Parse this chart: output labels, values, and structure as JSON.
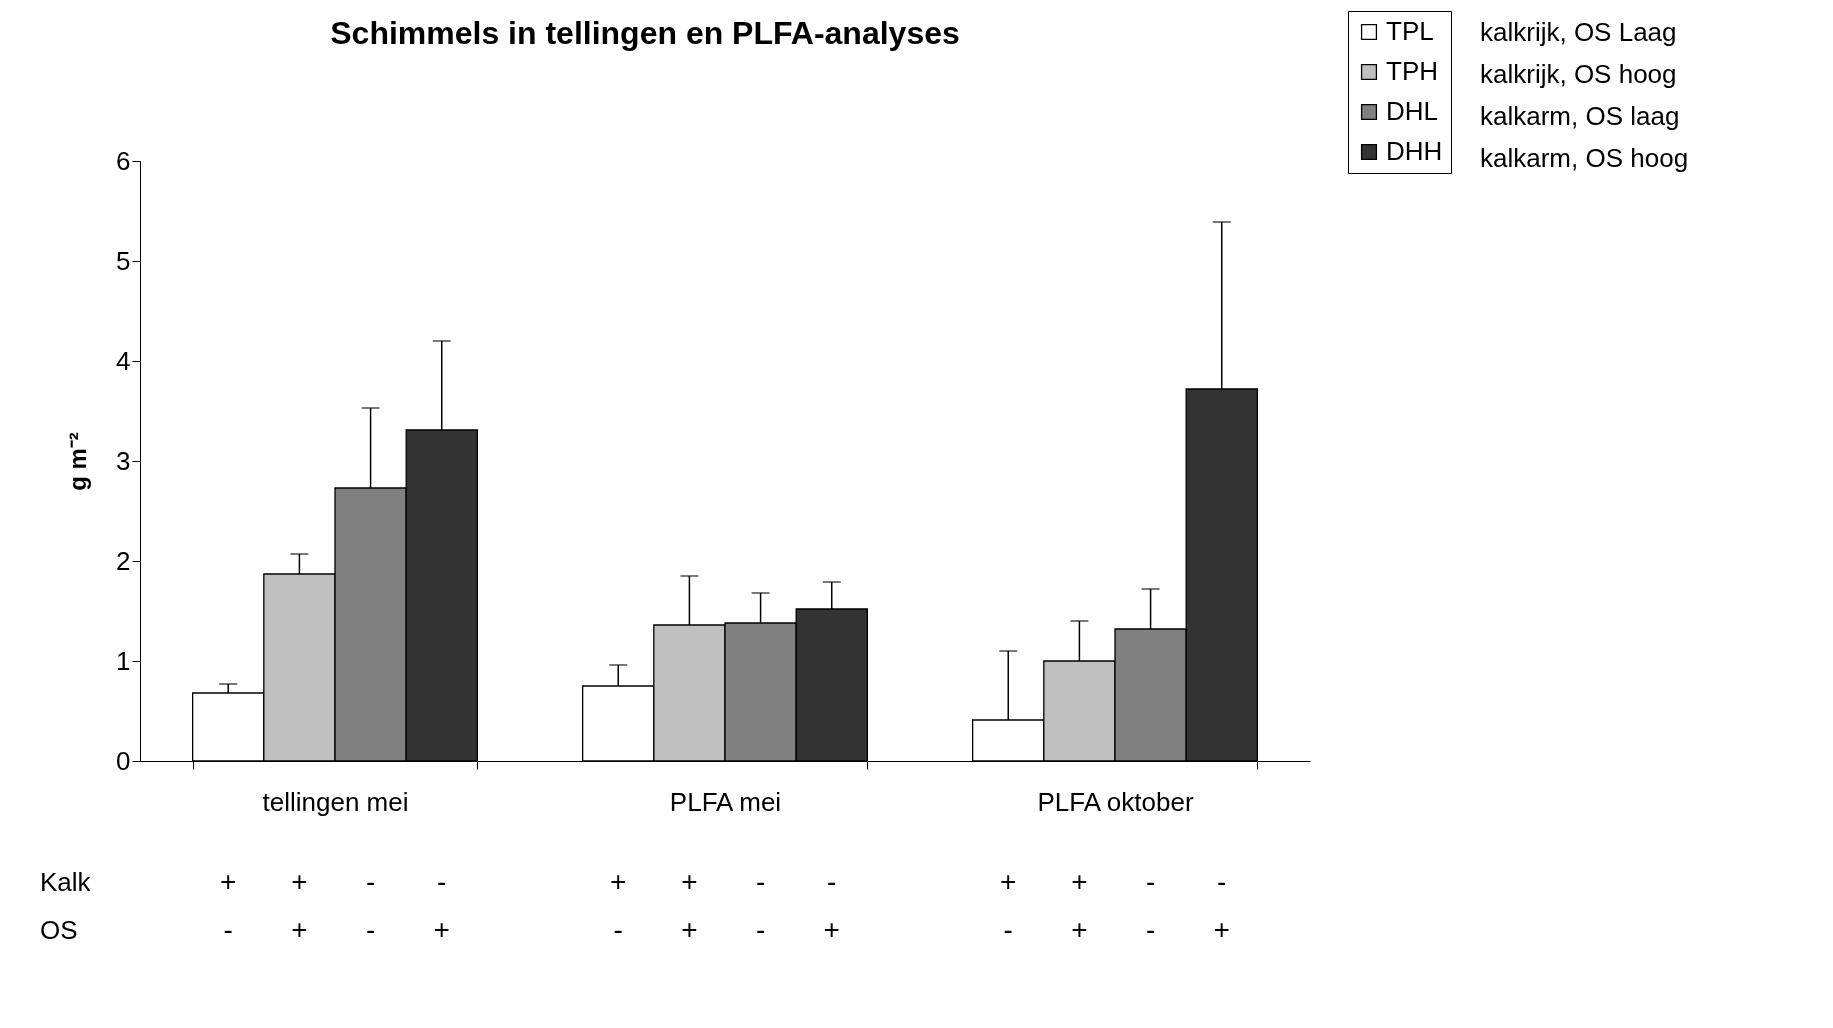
{
  "chart_data": {
    "type": "bar",
    "title": "Schimmels in tellingen en PLFA-analyses",
    "ylabel": "g m⁻²",
    "categories": [
      "tellingen mei",
      "PLFA mei",
      "PLFA oktober"
    ],
    "series": [
      {
        "name": "TPL",
        "color": "#ffffff",
        "values": [
          0.68,
          0.75,
          0.41
        ],
        "errors": [
          [
            0.68,
            0.77
          ],
          [
            0.75,
            0.96
          ],
          [
            0.41,
            1.1
          ]
        ]
      },
      {
        "name": "TPH",
        "color": "#c0c0c0",
        "values": [
          1.87,
          1.36,
          1.0
        ],
        "errors": [
          [
            1.87,
            2.07
          ],
          [
            1.36,
            1.85
          ],
          [
            1.0,
            1.4
          ]
        ]
      },
      {
        "name": "DHL",
        "color": "#808080",
        "values": [
          2.73,
          1.38,
          1.32
        ],
        "errors": [
          [
            2.73,
            3.53
          ],
          [
            1.38,
            1.68
          ],
          [
            1.32,
            1.72
          ]
        ]
      },
      {
        "name": "DHH",
        "color": "#333333",
        "values": [
          3.31,
          1.52,
          3.72
        ],
        "errors": [
          [
            3.31,
            4.2
          ],
          [
            1.52,
            1.79
          ],
          [
            3.72,
            5.39
          ]
        ]
      }
    ],
    "ylim": [
      0,
      6
    ],
    "yticks": [
      0,
      1,
      2,
      3,
      4,
      5,
      6
    ],
    "grid": false,
    "legend": "top right",
    "annotations": [
      "kalkrijk, OS Laag",
      "kalkrijk, OS hoog",
      "kalkarm, OS laag",
      "kalkarm, OS hoog",
      "Kalk",
      "+",
      "+",
      "-",
      "-",
      "+",
      "+",
      "-",
      "-",
      "+",
      "+",
      "-",
      "-",
      "OS",
      "-",
      "+",
      "-",
      "+",
      "-",
      "+",
      "-",
      "+",
      "-",
      "+",
      "-",
      "+"
    ]
  }
}
